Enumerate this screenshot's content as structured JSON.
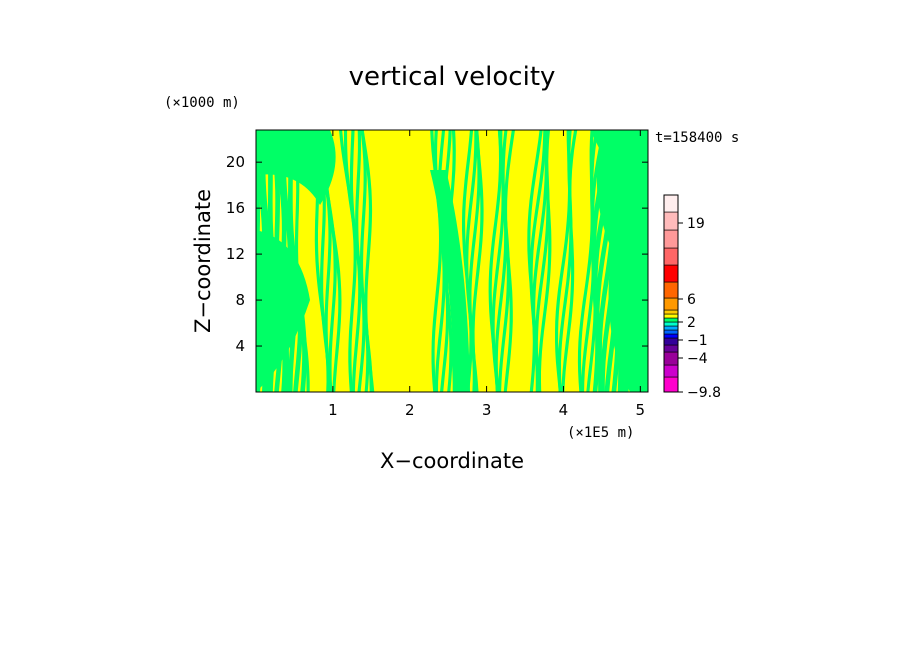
{
  "chart_data": {
    "type": "heatmap",
    "title": "vertical velocity",
    "xlabel": "X−coordinate",
    "ylabel": "Z−coordinate",
    "x_scale_label": "(×1E5 m)",
    "y_scale_label": "(×1000 m)",
    "time_label": "t=158400 s",
    "xlim": [
      0,
      5.1
    ],
    "ylim": [
      0,
      22.8
    ],
    "x_ticks": [
      1,
      2,
      3,
      4,
      5
    ],
    "y_ticks": [
      4,
      8,
      12,
      16,
      20
    ],
    "x_tick_labels": [
      "1",
      "2",
      "3",
      "4",
      "5"
    ],
    "y_tick_labels": [
      "4",
      "8",
      "12",
      "16",
      "20"
    ],
    "dominant_colors": {
      "positive": "#ffff00",
      "negative": "#00ff66"
    },
    "colorbar": {
      "colors": [
        "#ff00cc",
        "#cc00cc",
        "#990099",
        "#660099",
        "#330099",
        "#0000ff",
        "#0066ff",
        "#00aaff",
        "#00ffcc",
        "#00ff66",
        "#ffff00",
        "#ffcc00",
        "#ff9900",
        "#ff6600",
        "#ff0000",
        "#ff6666",
        "#ff9999",
        "#ffbbbb",
        "#ffeeee"
      ],
      "tick_values": [
        -9.8,
        -4,
        -1,
        2,
        6,
        19
      ],
      "tick_labels": [
        "−9.8",
        "−4",
        "−1",
        "2",
        "6",
        "19"
      ]
    }
  }
}
